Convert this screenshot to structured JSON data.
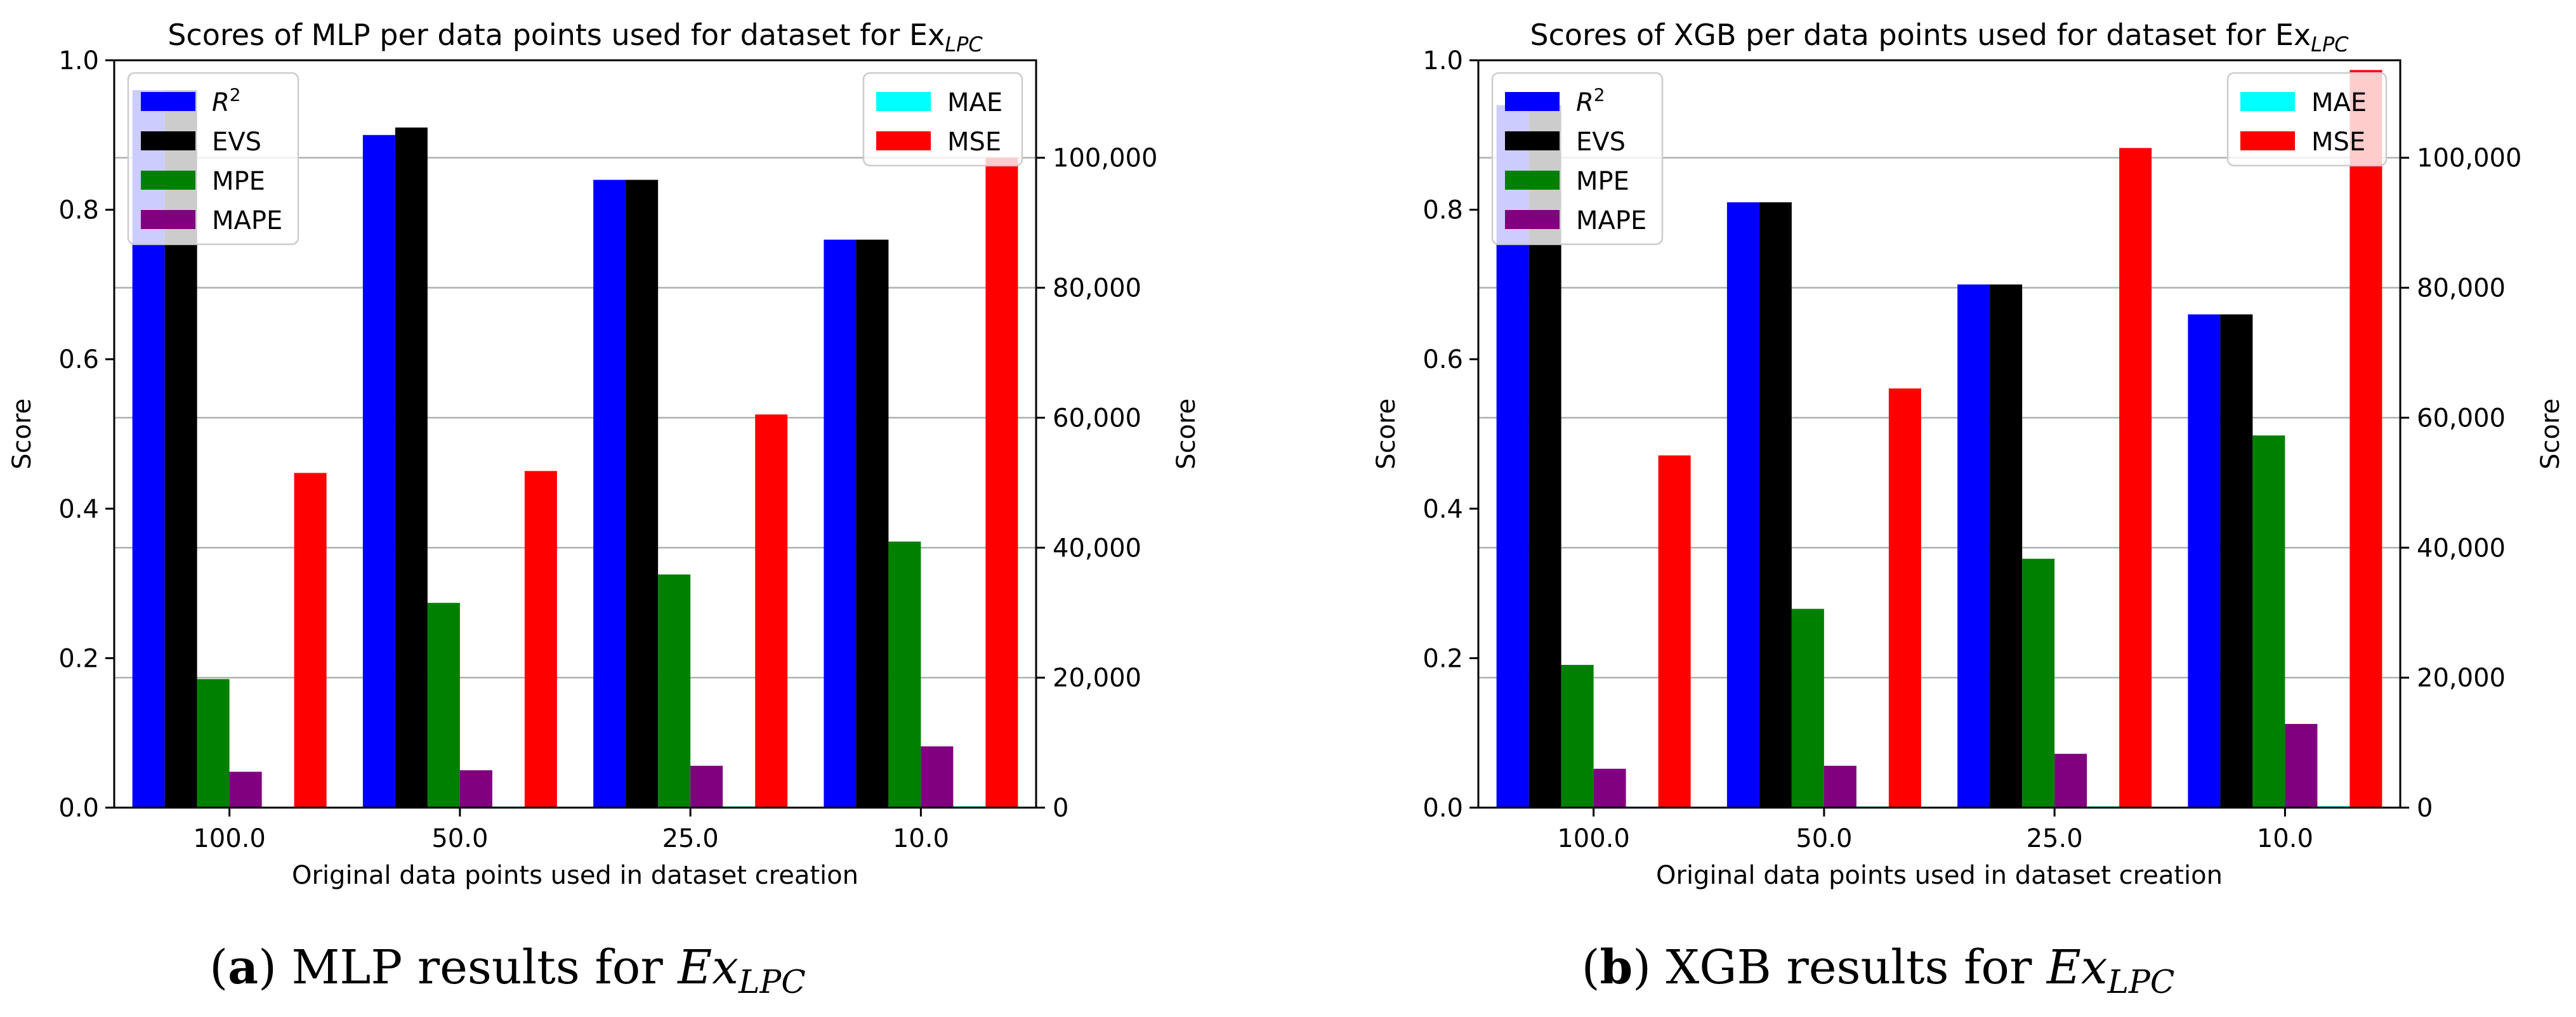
{
  "chart_data": [
    {
      "id": "a",
      "type": "bar",
      "title": "Scores of MLP per data points used for dataset for Ex",
      "title_subscript": "LPC",
      "caption_id": "a",
      "caption_text": "MLP results for ",
      "caption_math": "Ex",
      "caption_sub": "LPC",
      "xlabel": "Original data points used in dataset creation",
      "ylabel_left": "Score",
      "ylabel_right": "Score",
      "categories": [
        "100.0",
        "50.0",
        "25.0",
        "10.0"
      ],
      "left_axis": {
        "ylim": [
          0,
          1.0
        ],
        "ticks": [
          "0.0",
          "0.2",
          "0.4",
          "0.6",
          "0.8",
          "1.0"
        ],
        "series": [
          {
            "name": "R²",
            "name_base": "R",
            "name_sup": "2",
            "color": "#0000ff",
            "values": [
              0.96,
              0.9,
              0.84,
              0.76
            ]
          },
          {
            "name": "EVS",
            "color": "#000000",
            "values": [
              0.96,
              0.91,
              0.84,
              0.76
            ]
          },
          {
            "name": "MPE",
            "color": "#008000",
            "values": [
              0.172,
              0.274,
              0.312,
              0.356
            ]
          },
          {
            "name": "MAPE",
            "color": "#800080",
            "values": [
              0.048,
              0.05,
              0.056,
              0.082
            ]
          }
        ]
      },
      "right_axis": {
        "ylim": [
          0,
          115000
        ],
        "ticks": [
          "0",
          "20,000",
          "40,000",
          "60,000",
          "80,000",
          "100,000"
        ],
        "series": [
          {
            "name": "MAE",
            "color": "#00ffff",
            "values": [
              150,
              170,
              190,
              220
            ]
          },
          {
            "name": "MSE",
            "color": "#ff0000",
            "values": [
              51500,
              51800,
              60500,
              100000
            ]
          }
        ]
      },
      "grid": "horizontal, right axis",
      "legend_left": "upper-left",
      "legend_right": "upper-right"
    },
    {
      "id": "b",
      "type": "bar",
      "title": "Scores of XGB per data points used for dataset for Ex",
      "title_subscript": "LPC",
      "caption_id": "b",
      "caption_text": "XGB results for ",
      "caption_math": "Ex",
      "caption_sub": "LPC",
      "xlabel": "Original data points used in dataset creation",
      "ylabel_left": "Score",
      "ylabel_right": "Score",
      "categories": [
        "100.0",
        "50.0",
        "25.0",
        "10.0"
      ],
      "left_axis": {
        "ylim": [
          0,
          1.0
        ],
        "ticks": [
          "0.0",
          "0.2",
          "0.4",
          "0.6",
          "0.8",
          "1.0"
        ],
        "series": [
          {
            "name": "R²",
            "name_base": "R",
            "name_sup": "2",
            "color": "#0000ff",
            "values": [
              0.94,
              0.81,
              0.7,
              0.66
            ]
          },
          {
            "name": "EVS",
            "color": "#000000",
            "values": [
              0.94,
              0.81,
              0.7,
              0.66
            ]
          },
          {
            "name": "MPE",
            "color": "#008000",
            "values": [
              0.191,
              0.266,
              0.333,
              0.498
            ]
          },
          {
            "name": "MAPE",
            "color": "#800080",
            "values": [
              0.052,
              0.056,
              0.072,
              0.112
            ]
          }
        ]
      },
      "right_axis": {
        "ylim": [
          0,
          115000
        ],
        "ticks": [
          "0",
          "20,000",
          "40,000",
          "60,000",
          "80,000",
          "100,000"
        ],
        "series": [
          {
            "name": "MAE",
            "color": "#00ffff",
            "values": [
              160,
              175,
              200,
              240
            ]
          },
          {
            "name": "MSE",
            "color": "#ff0000",
            "values": [
              54200,
              64500,
              101500,
              113500
            ]
          }
        ]
      },
      "grid": "horizontal, right axis",
      "legend_left": "upper-left",
      "legend_right": "upper-right"
    }
  ]
}
